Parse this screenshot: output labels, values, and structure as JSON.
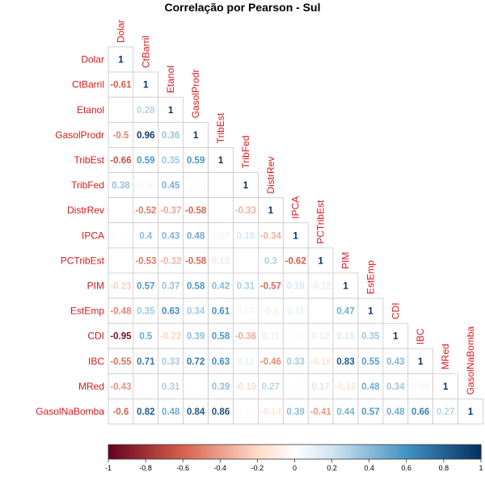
{
  "chart_data": {
    "type": "heatmap",
    "title": "Correlação por Pearson - Sul",
    "variables": [
      "Dolar",
      "CtBarril",
      "Etanol",
      "GasolProdr",
      "TribEst",
      "TribFed",
      "DistrRev",
      "IPCA",
      "PCTribEst",
      "PIM",
      "EstEmp",
      "CDI",
      "IBC",
      "MRed",
      "GasolNaBomba"
    ],
    "matrix": [
      [
        1
      ],
      [
        -0.61,
        1
      ],
      [
        null,
        0.28,
        1
      ],
      [
        -0.5,
        0.96,
        0.36,
        1
      ],
      [
        -0.66,
        0.59,
        0.35,
        0.59,
        1
      ],
      [
        0.38,
        0.06,
        0.45,
        0.03,
        null,
        1
      ],
      [
        null,
        -0.52,
        -0.37,
        -0.58,
        null,
        -0.33,
        1
      ],
      [
        0.02,
        0.4,
        0.43,
        0.48,
        0.07,
        0.18,
        -0.34,
        1
      ],
      [
        0.01,
        -0.53,
        -0.32,
        -0.58,
        0.12,
        0.01,
        0.3,
        -0.62,
        1
      ],
      [
        -0.23,
        0.57,
        0.37,
        0.58,
        0.42,
        0.31,
        -0.57,
        0.18,
        -0.12,
        1
      ],
      [
        -0.48,
        0.35,
        0.63,
        0.34,
        0.61,
        0.07,
        -0.1,
        0.11,
        0.01,
        0.47,
        1
      ],
      [
        -0.95,
        0.5,
        -0.22,
        0.39,
        0.58,
        -0.36,
        0.11,
        0.02,
        0.12,
        0.15,
        0.35,
        1
      ],
      [
        -0.55,
        0.71,
        0.33,
        0.72,
        0.63,
        0.11,
        -0.46,
        0.33,
        -0.16,
        0.83,
        0.55,
        0.43,
        1
      ],
      [
        -0.43,
        0.01,
        0.31,
        0.01,
        0.39,
        -0.19,
        0.27,
        0.02,
        0.17,
        -0.15,
        0.48,
        0.34,
        0.06,
        1
      ],
      [
        -0.6,
        0.82,
        0.48,
        0.84,
        0.86,
        0.02,
        -0.14,
        0.39,
        -0.41,
        0.44,
        0.57,
        0.48,
        0.66,
        0.27,
        1
      ]
    ],
    "colorbar": {
      "range": [
        -1,
        1
      ],
      "ticks": [
        "-1",
        "-0.8",
        "-0.6",
        "-0.4",
        "-0.2",
        "0",
        "0.2",
        "0.4",
        "0.6",
        "0.8",
        "1"
      ],
      "colors": {
        "neg_strong": "#67001f",
        "neg_mid": "#d6604d",
        "neg_light": "#fddbc7",
        "zero": "#ffffff",
        "pos_light": "#d1e5f0",
        "pos_mid": "#4393c3",
        "pos_strong": "#053061"
      }
    },
    "label_color": "#d7191c"
  }
}
